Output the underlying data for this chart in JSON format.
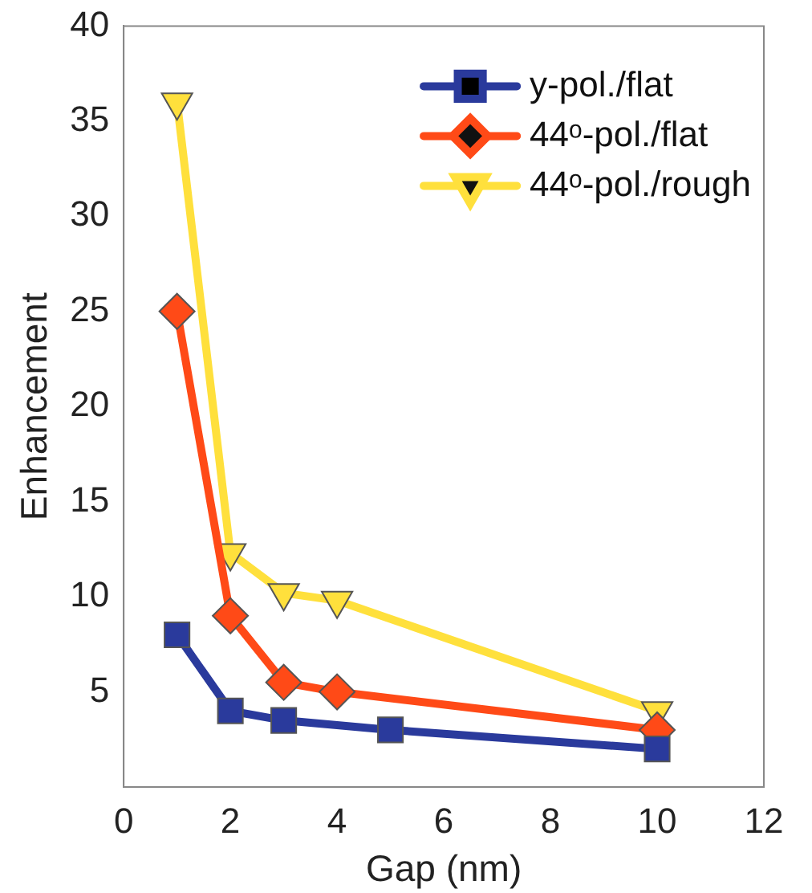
{
  "chart_data": {
    "type": "line",
    "xlabel": "Gap (nm)",
    "ylabel": "Enhancement",
    "xlim": [
      0,
      12
    ],
    "xticks": [
      0,
      2,
      4,
      6,
      8,
      10,
      12
    ],
    "ylim": [
      0,
      40
    ],
    "yticks": [
      5,
      10,
      15,
      20,
      25,
      30,
      35,
      40
    ],
    "grid": false,
    "legend": "top right",
    "line_style": "solid",
    "series": [
      {
        "name": "y-pol./flat",
        "color": "#2a3a9c",
        "marker": "square",
        "x": [
          1,
          2,
          3,
          5,
          10
        ],
        "values": [
          8,
          4,
          3.5,
          3,
          2
        ]
      },
      {
        "name": "44ᵒ-pol./flat",
        "color": "#ff4a17",
        "marker": "diamond",
        "x": [
          1,
          2,
          3,
          4,
          10
        ],
        "values": [
          25,
          9,
          5.5,
          5,
          3
        ]
      },
      {
        "name": "44ᵒ-pol./rough",
        "color": "#ffe03c",
        "marker": "triangle-down",
        "x": [
          1,
          2,
          3,
          4,
          10
        ],
        "values": [
          36,
          12.3,
          10.2,
          9.8,
          4
        ]
      }
    ]
  }
}
